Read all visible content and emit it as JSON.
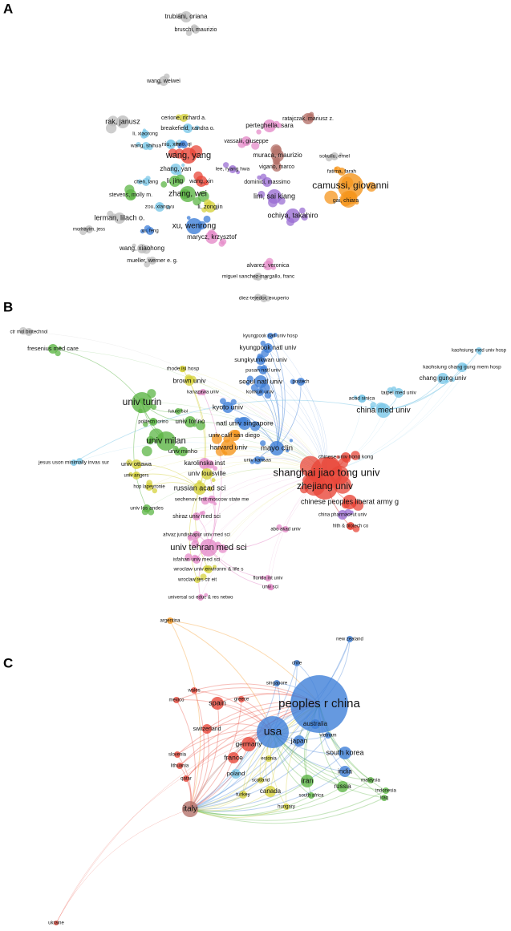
{
  "panels": [
    {
      "label": "A",
      "nodes": [
        "trubiani, oriana",
        "bruschi, maurizio",
        "wang, weiwei",
        "rak, janusz",
        "cerione, richard a.",
        "breakefield, xandra o.",
        "perteghella, sara",
        "ratajczak, mariusz z.",
        "li, xiaorong",
        "niu, xin",
        "hao, qi",
        "vassalli, giuseppe",
        "wang, shihua",
        "wang, yang",
        "muraca, maurizio",
        "sokullu, emel",
        "zhang, yan",
        "lee, ryang hwa",
        "vigano, marco",
        "fatima, farah",
        "chen, lang",
        "li, jing",
        "wang, xin",
        "dominici, massimo",
        "camussi, giovanni",
        "zhang, wei",
        "stevens, molly m.",
        "lim, sai kiang",
        "gai, chiara",
        "zou, xiangyu",
        "li, zongjin",
        "ochiya, takahiro",
        "lerman, lilach o.",
        "xu, wenrong",
        "morhayim, jess",
        "xu, feng",
        "marycz, krzysztof",
        "wang, xiaohong",
        "mueller, werner e. g.",
        "alvarez, veronica",
        "miguel sanchez-margallo, franc",
        "diez-tejedor, exuperio"
      ]
    },
    {
      "label": "B",
      "nodes": [
        "ctr mol biotechnol",
        "fresenius med care",
        "kyungpook natl univ hosp",
        "kyungpook natl univ",
        "sungkyunkwan univ",
        "pusan natl univ",
        "postech",
        "seoul natl univ",
        "konkuk univ",
        "kaohsiung med univ hosp",
        "kaohsiung chang gung mem hosp",
        "chang gung univ",
        "taipei med univ",
        "acad sinica",
        "china med univ",
        "rhode isl hosp",
        "brown univ",
        "kanazawa univ",
        "univ turin",
        "kyoto univ",
        "future biol",
        "politecn torino",
        "univ torino",
        "natl univ singapore",
        "univ calif san diego",
        "univ milan",
        "harvard univ",
        "mayo clin",
        "univ minho",
        "chinese univ hong kong",
        "jesus uson minimally invas sur",
        "univ ottawa",
        "karolinska inst",
        "univ kansas",
        "shanghai jiao tong univ",
        "univ louisville",
        "univ angers",
        "zhejiang univ",
        "hop lapeyronie",
        "russian acad sci",
        "chinese peoples liberat army g",
        "univ los andes",
        "sechenov first moscow state me",
        "china pharmaceut univ",
        "shiraz univ med sci",
        "hlth & biotech co",
        "ahvaz jundishapur univ med sci",
        "abo akad univ",
        "univ tehran med sci",
        "isfahan univ med sci",
        "wroclaw univ environm & life s",
        "wroclaw res ctr eit",
        "florida int univ",
        "univ sci",
        "universal sci educ & res netwo"
      ]
    },
    {
      "label": "C",
      "nodes": [
        "argentina",
        "new zealand",
        "chile",
        "singapore",
        "wales",
        "peoples r china",
        "mexico",
        "spain",
        "greece",
        "australia",
        "switzerland",
        "usa",
        "vietnam",
        "japan",
        "germany",
        "south korea",
        "slovenia",
        "estonia",
        "france",
        "india",
        "lithuania",
        "poland",
        "iran",
        "malaysia",
        "scotland",
        "russia",
        "canada",
        "qatar",
        "indonesia",
        "turkey",
        "south africa",
        "iraq",
        "hungary",
        "italy",
        "ukraine"
      ]
    }
  ]
}
